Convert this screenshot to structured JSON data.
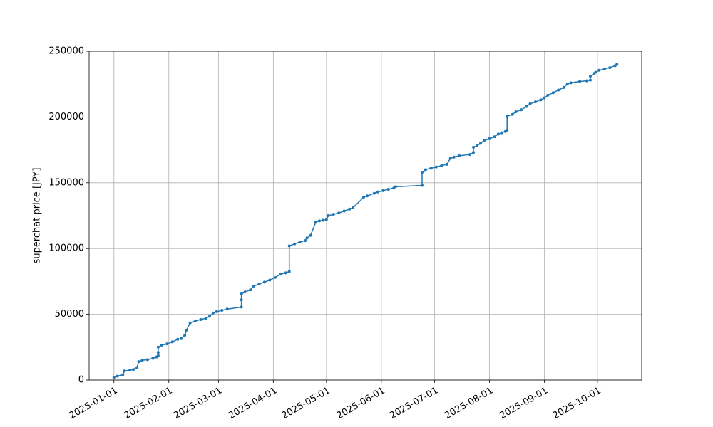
{
  "chart_data": {
    "type": "line",
    "ylabel": "superchat price [JPY]",
    "color": "#1f77b4",
    "grid": true,
    "xlim": [
      "2024-12-18",
      "2025-10-26"
    ],
    "xticks": [
      "2025-01-01",
      "2025-02-01",
      "2025-03-01",
      "2025-04-01",
      "2025-05-01",
      "2025-06-01",
      "2025-07-01",
      "2025-08-01",
      "2025-09-01",
      "2025-10-01"
    ],
    "ylim": [
      0,
      250000
    ],
    "yticks": [
      0,
      50000,
      100000,
      150000,
      200000,
      250000
    ],
    "x": [
      "2025-01-01",
      "2025-01-03",
      "2025-01-06",
      "2025-01-07",
      "2025-01-10",
      "2025-01-12",
      "2025-01-14",
      "2025-01-15",
      "2025-01-17",
      "2025-01-20",
      "2025-01-23",
      "2025-01-25",
      "2025-01-26",
      "2025-01-26",
      "2025-01-26",
      "2025-01-28",
      "2025-01-31",
      "2025-02-03",
      "2025-02-06",
      "2025-02-08",
      "2025-02-10",
      "2025-02-11",
      "2025-02-13",
      "2025-02-16",
      "2025-02-19",
      "2025-02-22",
      "2025-02-24",
      "2025-02-26",
      "2025-02-28",
      "2025-03-03",
      "2025-03-06",
      "2025-03-14",
      "2025-03-14",
      "2025-03-14",
      "2025-03-16",
      "2025-03-19",
      "2025-03-21",
      "2025-03-24",
      "2025-03-27",
      "2025-03-30",
      "2025-04-02",
      "2025-04-05",
      "2025-04-08",
      "2025-04-10",
      "2025-04-10",
      "2025-04-13",
      "2025-04-16",
      "2025-04-19",
      "2025-04-20",
      "2025-04-22",
      "2025-04-25",
      "2025-04-27",
      "2025-04-29",
      "2025-05-01",
      "2025-05-02",
      "2025-05-05",
      "2025-05-08",
      "2025-05-11",
      "2025-05-14",
      "2025-05-16",
      "2025-05-22",
      "2025-05-24",
      "2025-05-28",
      "2025-05-30",
      "2025-06-02",
      "2025-06-05",
      "2025-06-08",
      "2025-06-09",
      "2025-06-24",
      "2025-06-24",
      "2025-06-26",
      "2025-06-29",
      "2025-07-02",
      "2025-07-05",
      "2025-07-08",
      "2025-07-10",
      "2025-07-12",
      "2025-07-15",
      "2025-07-21",
      "2025-07-23",
      "2025-07-23",
      "2025-07-25",
      "2025-07-27",
      "2025-07-29",
      "2025-08-01",
      "2025-08-04",
      "2025-08-06",
      "2025-08-08",
      "2025-08-10",
      "2025-08-11",
      "2025-08-11",
      "2025-08-14",
      "2025-08-16",
      "2025-08-19",
      "2025-08-22",
      "2025-08-24",
      "2025-08-27",
      "2025-08-30",
      "2025-09-01",
      "2025-09-03",
      "2025-09-06",
      "2025-09-09",
      "2025-09-12",
      "2025-09-14",
      "2025-09-16",
      "2025-09-21",
      "2025-09-25",
      "2025-09-27",
      "2025-09-27",
      "2025-09-29",
      "2025-09-30",
      "2025-10-02",
      "2025-10-05",
      "2025-10-08",
      "2025-10-11",
      "2025-10-12"
    ],
    "values": [
      2000,
      3000,
      4000,
      7000,
      7500,
      8000,
      9500,
      14000,
      15000,
      15500,
      16500,
      17500,
      18500,
      21000,
      25000,
      26500,
      27500,
      29000,
      31000,
      31500,
      34000,
      38000,
      43500,
      45000,
      46000,
      47000,
      48500,
      51000,
      52000,
      53000,
      54000,
      55500,
      61000,
      65500,
      67000,
      68500,
      71500,
      73000,
      74500,
      76000,
      78000,
      80500,
      81500,
      82500,
      102000,
      103500,
      105000,
      106000,
      108000,
      110000,
      120000,
      121000,
      121500,
      122000,
      125000,
      126000,
      127000,
      128500,
      130000,
      131000,
      139000,
      140000,
      142000,
      143000,
      144000,
      145000,
      146000,
      147000,
      148000,
      158000,
      160000,
      161000,
      162000,
      163000,
      164000,
      168500,
      169500,
      170500,
      171500,
      173000,
      177000,
      178000,
      180000,
      182000,
      183500,
      185000,
      187000,
      188000,
      189000,
      190000,
      200500,
      202000,
      204000,
      205500,
      208000,
      210000,
      211500,
      213000,
      214500,
      216500,
      218500,
      220500,
      222500,
      225000,
      226000,
      227000,
      227500,
      228000,
      231000,
      233000,
      234000,
      235500,
      236500,
      237500,
      239000,
      240000
    ]
  }
}
